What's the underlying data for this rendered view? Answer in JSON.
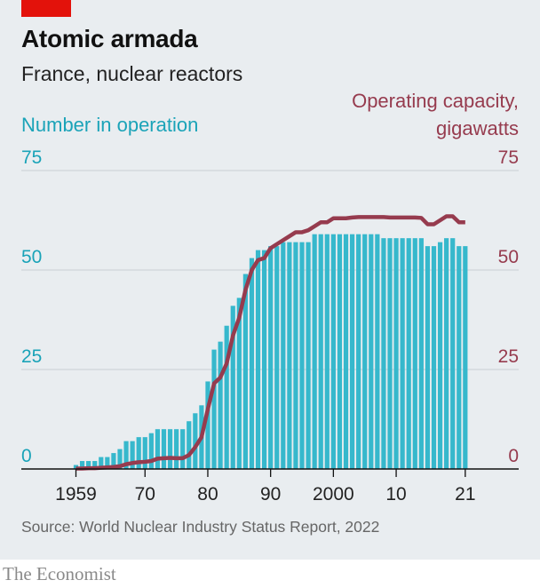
{
  "header": {
    "title": "Atomic armada",
    "subtitle": "France, nuclear reactors"
  },
  "footer": {
    "source": "Source: World Nuclear Industry Status Report, 2022",
    "brand": "The Economist"
  },
  "colors": {
    "brand_red": "#e3120b",
    "bars": "#36b8cc",
    "line": "#963b4e",
    "left_axis": "#1aa3b8",
    "background": "#e9edf0"
  },
  "chart_data": {
    "type": "bar",
    "x": [
      1959,
      1960,
      1961,
      1962,
      1963,
      1964,
      1965,
      1966,
      1967,
      1968,
      1969,
      1970,
      1971,
      1972,
      1973,
      1974,
      1975,
      1976,
      1977,
      1978,
      1979,
      1980,
      1981,
      1982,
      1983,
      1984,
      1985,
      1986,
      1987,
      1988,
      1989,
      1990,
      1991,
      1992,
      1993,
      1994,
      1995,
      1996,
      1997,
      1998,
      1999,
      2000,
      2001,
      2002,
      2003,
      2004,
      2005,
      2006,
      2007,
      2008,
      2009,
      2010,
      2011,
      2012,
      2013,
      2014,
      2015,
      2016,
      2017,
      2018,
      2019,
      2020,
      2021
    ],
    "x_tick_labels": [
      "1959",
      "70",
      "80",
      "90",
      "2000",
      "10",
      "21"
    ],
    "x_tick_values": [
      1959,
      1970,
      1980,
      1990,
      2000,
      2010,
      2021
    ],
    "y_left": {
      "label": "Number in operation",
      "ticks": [
        0,
        25,
        50,
        75
      ],
      "range": [
        0,
        75
      ]
    },
    "y_right": {
      "label": [
        "Operating capacity,",
        "gigawatts"
      ],
      "ticks": [
        0,
        25,
        50,
        75
      ],
      "range": [
        0,
        75
      ]
    },
    "series": [
      {
        "name": "Number in operation",
        "type": "bar",
        "axis": "left",
        "values": [
          1,
          2,
          2,
          2,
          3,
          3,
          4,
          5,
          7,
          7,
          8,
          8,
          9,
          10,
          10,
          10,
          10,
          10,
          12,
          14,
          16,
          22,
          30,
          32,
          36,
          41,
          43,
          49,
          53,
          55,
          55,
          56,
          56,
          57,
          57,
          57,
          57,
          57,
          59,
          59,
          59,
          59,
          59,
          59,
          59,
          59,
          59,
          59,
          59,
          58,
          58,
          58,
          58,
          58,
          58,
          58,
          56,
          56,
          57,
          58,
          58,
          56,
          56
        ]
      },
      {
        "name": "Operating capacity, gigawatts",
        "type": "line",
        "axis": "right",
        "values": [
          0.1,
          0.1,
          0.2,
          0.2,
          0.3,
          0.4,
          0.5,
          0.7,
          1.2,
          1.5,
          1.7,
          1.8,
          2.0,
          2.6,
          2.7,
          2.8,
          2.7,
          2.7,
          3.5,
          5.5,
          8.0,
          15.0,
          21.5,
          23.0,
          26.5,
          33.5,
          38.0,
          45.0,
          50.0,
          52.5,
          53.0,
          55.5,
          56.5,
          57.5,
          58.5,
          59.5,
          59.5,
          60.0,
          61.0,
          62.0,
          62.0,
          63.0,
          63.0,
          63.0,
          63.2,
          63.3,
          63.3,
          63.3,
          63.3,
          63.3,
          63.2,
          63.2,
          63.2,
          63.2,
          63.2,
          63.1,
          61.5,
          61.5,
          62.5,
          63.5,
          63.5,
          62.0,
          62.0
        ]
      }
    ]
  }
}
